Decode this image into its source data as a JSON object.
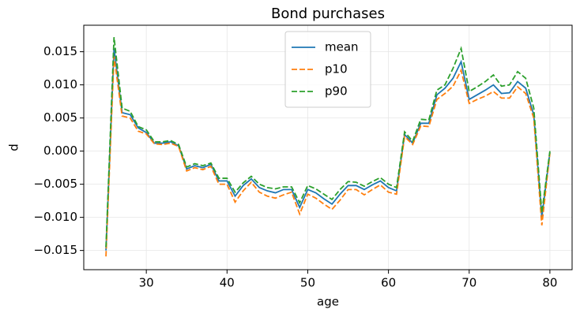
{
  "chart_data": {
    "type": "line",
    "title": "Bond purchases",
    "xlabel": "age",
    "ylabel": "d",
    "x": [
      25,
      26,
      27,
      28,
      29,
      30,
      31,
      32,
      33,
      34,
      35,
      36,
      37,
      38,
      39,
      40,
      41,
      42,
      43,
      44,
      45,
      46,
      47,
      48,
      49,
      50,
      51,
      52,
      53,
      54,
      55,
      56,
      57,
      58,
      59,
      60,
      61,
      62,
      63,
      64,
      65,
      66,
      67,
      68,
      69,
      70,
      71,
      72,
      73,
      74,
      75,
      76,
      77,
      78,
      79,
      80
    ],
    "series": [
      {
        "name": "mean",
        "color": "#1f77b4",
        "linestyle": "solid",
        "values": [
          -0.015,
          0.0155,
          0.0058,
          0.0055,
          0.0035,
          0.0028,
          0.0012,
          0.0012,
          0.0014,
          0.0008,
          -0.0027,
          -0.0022,
          -0.0025,
          -0.002,
          -0.0045,
          -0.0045,
          -0.0068,
          -0.0052,
          -0.0042,
          -0.0055,
          -0.006,
          -0.0063,
          -0.0058,
          -0.0058,
          -0.0085,
          -0.0058,
          -0.0063,
          -0.0072,
          -0.008,
          -0.0065,
          -0.0052,
          -0.0052,
          -0.0058,
          -0.0051,
          -0.0045,
          -0.0055,
          -0.006,
          0.0025,
          0.0012,
          0.0042,
          0.0042,
          0.0085,
          0.0095,
          0.011,
          0.0135,
          0.0078,
          0.0085,
          0.0092,
          0.01,
          0.0087,
          0.0088,
          0.0105,
          0.0095,
          0.0055,
          -0.01,
          -0.0002
        ]
      },
      {
        "name": "p10",
        "color": "#ff7f0e",
        "linestyle": "dashed",
        "values": [
          -0.0159,
          0.0143,
          0.0053,
          0.005,
          0.003,
          0.0026,
          0.0011,
          0.001,
          0.0012,
          0.0007,
          -0.003,
          -0.0025,
          -0.0028,
          -0.0023,
          -0.005,
          -0.005,
          -0.0077,
          -0.006,
          -0.0047,
          -0.0062,
          -0.0068,
          -0.0071,
          -0.0066,
          -0.0062,
          -0.0095,
          -0.0065,
          -0.0071,
          -0.008,
          -0.0088,
          -0.0074,
          -0.0058,
          -0.0058,
          -0.0066,
          -0.0058,
          -0.0051,
          -0.0062,
          -0.0065,
          0.0022,
          0.001,
          0.0038,
          0.0037,
          0.0078,
          0.0087,
          0.0098,
          0.0122,
          0.0072,
          0.0078,
          0.0083,
          0.009,
          0.008,
          0.008,
          0.0097,
          0.0087,
          0.005,
          -0.0112,
          -0.0003
        ]
      },
      {
        "name": "p90",
        "color": "#2ca02c",
        "linestyle": "dashed",
        "values": [
          -0.0145,
          0.0172,
          0.0065,
          0.006,
          0.0037,
          0.0032,
          0.0014,
          0.0014,
          0.0016,
          0.001,
          -0.0024,
          -0.0019,
          -0.0022,
          -0.0018,
          -0.0041,
          -0.0041,
          -0.0062,
          -0.0048,
          -0.0038,
          -0.005,
          -0.0055,
          -0.0057,
          -0.0054,
          -0.0054,
          -0.0078,
          -0.0052,
          -0.0057,
          -0.0065,
          -0.0073,
          -0.0058,
          -0.0046,
          -0.0047,
          -0.0053,
          -0.0046,
          -0.004,
          -0.005,
          -0.0055,
          0.0029,
          0.0015,
          0.0048,
          0.0047,
          0.0092,
          0.01,
          0.0125,
          0.0155,
          0.009,
          0.0097,
          0.0105,
          0.0115,
          0.0098,
          0.01,
          0.012,
          0.011,
          0.0065,
          -0.0093,
          0.0
        ]
      }
    ],
    "xlim": [
      22.25,
      82.75
    ],
    "xticks": [
      30,
      40,
      50,
      60,
      70,
      80
    ],
    "ylim": [
      -0.0179,
      0.019
    ],
    "yticks": [
      {
        "value": -0.015,
        "label": "−0.015"
      },
      {
        "value": -0.01,
        "label": "−0.010"
      },
      {
        "value": -0.005,
        "label": "−0.005"
      },
      {
        "value": 0,
        "label": "0.000"
      },
      {
        "value": 0.005,
        "label": "0.005"
      },
      {
        "value": 0.01,
        "label": "0.010"
      },
      {
        "value": 0.015,
        "label": "0.015"
      }
    ],
    "grid": true,
    "legend": "upper center"
  }
}
